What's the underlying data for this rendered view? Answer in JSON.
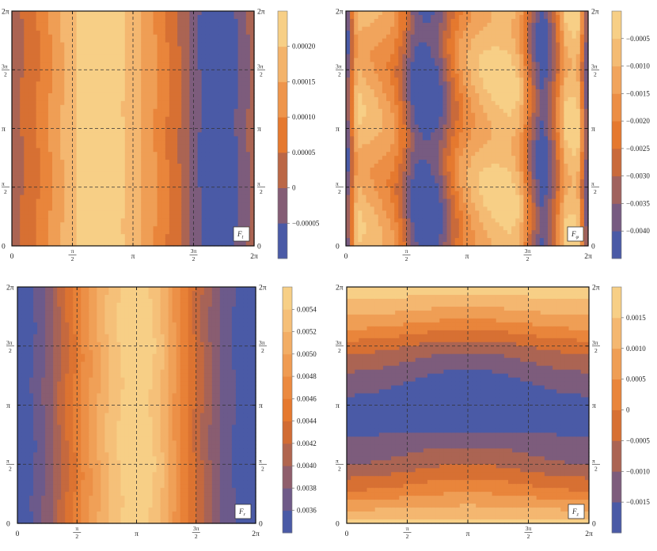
{
  "palette": [
    "#4a5aa6",
    "#6f5a88",
    "#8f5e6c",
    "#b0654f",
    "#d16c34",
    "#e5792f",
    "#eb8a40",
    "#ef9b52",
    "#f2ad65",
    "#f5bf78",
    "#f7cf86"
  ],
  "chart_data": [
    {
      "type": "heatmap",
      "title": "",
      "panel_label": "F",
      "panel_label_sub": "t",
      "x_ticks": [
        "0",
        "π/2",
        "π",
        "3π/2",
        "2π"
      ],
      "y_ticks": [
        "0",
        "π/2",
        "π",
        "3π/2",
        "2π"
      ],
      "xlim": [
        0,
        6.2832
      ],
      "ylim": [
        0,
        6.2832
      ],
      "gridlines": true,
      "color_levels": 8,
      "contours_vary_along": "x",
      "x": [
        0,
        0.3,
        0.6,
        0.9,
        1.2,
        1.5,
        1.8,
        2.1,
        2.4,
        2.7,
        3.0,
        3.3,
        3.6,
        3.9,
        4.2,
        4.5,
        4.8,
        5.1,
        5.4,
        5.7,
        6.0,
        6.2832
      ],
      "values": [
        2e-05,
        4e-05,
        7e-05,
        0.00011,
        0.00015,
        0.00019,
        0.00022,
        0.00024,
        0.00024,
        0.00023,
        0.0002,
        0.00017,
        0.00014,
        0.0001,
        6e-05,
        2e-05,
        -4e-05,
        -7e-05,
        -8e-05,
        -7e-05,
        -2e-05,
        1e-05
      ],
      "wiggle": 5e-06,
      "zlim": [
        -9e-05,
        0.00025
      ],
      "colorbar_levels": [
        -5e-05,
        0,
        5e-05,
        0.0001,
        0.00015,
        0.0002
      ],
      "colorbar_labels": [
        "−0.00005",
        "0",
        "0.00005",
        "0.00010",
        "0.00015",
        "0.00020"
      ],
      "colorbar_pos": "right"
    },
    {
      "type": "heatmap",
      "title": "",
      "panel_label": "F",
      "panel_label_sub": "φ",
      "x_ticks": [
        "0",
        "π/2",
        "π",
        "3π/2",
        "2π"
      ],
      "y_ticks": [
        "0",
        "π/2",
        "π",
        "3π/2",
        "2π"
      ],
      "xlim": [
        0,
        6.2832
      ],
      "ylim": [
        0,
        6.2832
      ],
      "gridlines": true,
      "color_levels": 9,
      "contours_vary_along": "x",
      "x": [
        0,
        0.3,
        0.6,
        0.9,
        1.2,
        1.5,
        1.8,
        2.1,
        2.4,
        2.7,
        3.0,
        3.3,
        3.6,
        3.9,
        4.2,
        4.5,
        4.8,
        5.1,
        5.4,
        5.7,
        6.0,
        6.2832
      ],
      "values": [
        -0.0043,
        -0.0008,
        -0.0011,
        -0.0014,
        -0.0018,
        -0.0028,
        -0.0042,
        -0.0044,
        -0.004,
        -0.0028,
        -0.0018,
        -0.0012,
        -0.0008,
        -0.0006,
        -0.0005,
        -0.001,
        -0.003,
        -0.0044,
        -0.003,
        -0.0008,
        -0.0005,
        -0.0043
      ],
      "wiggle": 0.0004,
      "zlim": [
        -0.0045,
        -0.0001
      ],
      "colorbar_levels": [
        -0.004,
        -0.0035,
        -0.003,
        -0.0025,
        -0.002,
        -0.0015,
        -0.001,
        -0.0005
      ],
      "colorbar_labels": [
        "−0.0040",
        "−0.0035",
        "−0.0030",
        "−0.0025",
        "−0.0020",
        "−0.0015",
        "−0.0010",
        "−0.0005"
      ],
      "colorbar_pos": "right"
    },
    {
      "type": "heatmap",
      "title": "",
      "panel_label": "F",
      "panel_label_sub": "r",
      "x_ticks": [
        "0",
        "π/2",
        "π",
        "3π/2",
        "2π"
      ],
      "y_ticks": [
        "0",
        "π/2",
        "π",
        "3π/2",
        "2π"
      ],
      "xlim": [
        0,
        6.2832
      ],
      "ylim": [
        0,
        6.2832
      ],
      "gridlines": true,
      "color_levels": 12,
      "contours_vary_along": "x",
      "x": [
        0,
        0.3,
        0.6,
        0.9,
        1.2,
        1.5,
        1.8,
        2.1,
        2.4,
        2.7,
        3.0,
        3.3,
        3.6,
        3.9,
        4.2,
        4.5,
        4.8,
        5.1,
        5.4,
        5.7,
        6.0,
        6.2832
      ],
      "values": [
        0.00345,
        0.00352,
        0.00368,
        0.00392,
        0.00422,
        0.0045,
        0.00478,
        0.00502,
        0.00525,
        0.00542,
        0.00552,
        0.00553,
        0.0054,
        0.00515,
        0.0048,
        0.00448,
        0.0042,
        0.00395,
        0.00372,
        0.00358,
        0.00348,
        0.00345
      ],
      "wiggle": 3e-05,
      "zlim": [
        0.0034,
        0.0056
      ],
      "colorbar_levels": [
        0.0036,
        0.0038,
        0.004,
        0.0042,
        0.0044,
        0.0046,
        0.0048,
        0.005,
        0.0052,
        0.0054
      ],
      "colorbar_labels": [
        "0.0036",
        "0.0038",
        "0.0040",
        "0.0042",
        "0.0044",
        "0.0046",
        "0.0048",
        "0.0050",
        "0.0052",
        "0.0054"
      ],
      "colorbar_pos": "right"
    },
    {
      "type": "heatmap",
      "title": "",
      "panel_label": "F",
      "panel_label_sub": "z",
      "x_ticks": [
        "0",
        "π/2",
        "π",
        "3π/2",
        "2π"
      ],
      "y_ticks": [
        "0",
        "π/2",
        "π",
        "3π/2",
        "2π"
      ],
      "xlim": [
        0,
        6.2832
      ],
      "ylim": [
        0,
        6.2832
      ],
      "gridlines": true,
      "color_levels": 8,
      "contours_vary_along": "y",
      "y": [
        0,
        0.3,
        0.6,
        0.9,
        1.2,
        1.5,
        1.8,
        2.1,
        2.4,
        2.7,
        3.0,
        3.3,
        3.6,
        3.9,
        4.2,
        4.5,
        4.8,
        5.1,
        5.4,
        5.7,
        6.0,
        6.2832
      ],
      "values": [
        0.0017,
        0.0012,
        0.0007,
        0.0002,
        -0.0002,
        -0.0006,
        -0.0009,
        -0.0011,
        -0.0013,
        -0.0014,
        -0.0015,
        -0.0015,
        -0.0014,
        -0.0012,
        -0.001,
        -0.0007,
        -0.0003,
        0.0002,
        0.0007,
        0.0011,
        0.0015,
        0.0017
      ],
      "blob_center": [
        3.1416,
        3.1416
      ],
      "blob_width": 1.5,
      "blob_height": 0.8,
      "blob_depth": -0.0006,
      "xmod": 0.00025,
      "zlim": [
        -0.0019,
        0.002
      ],
      "colorbar_levels": [
        -0.0015,
        -0.001,
        -0.0005,
        0,
        0.0005,
        0.001,
        0.0015
      ],
      "colorbar_labels": [
        "−0.0015",
        "−0.0010",
        "−0.0005",
        "0",
        "0.0005",
        "0.0010",
        "0.0015"
      ],
      "colorbar_pos": "right"
    }
  ]
}
